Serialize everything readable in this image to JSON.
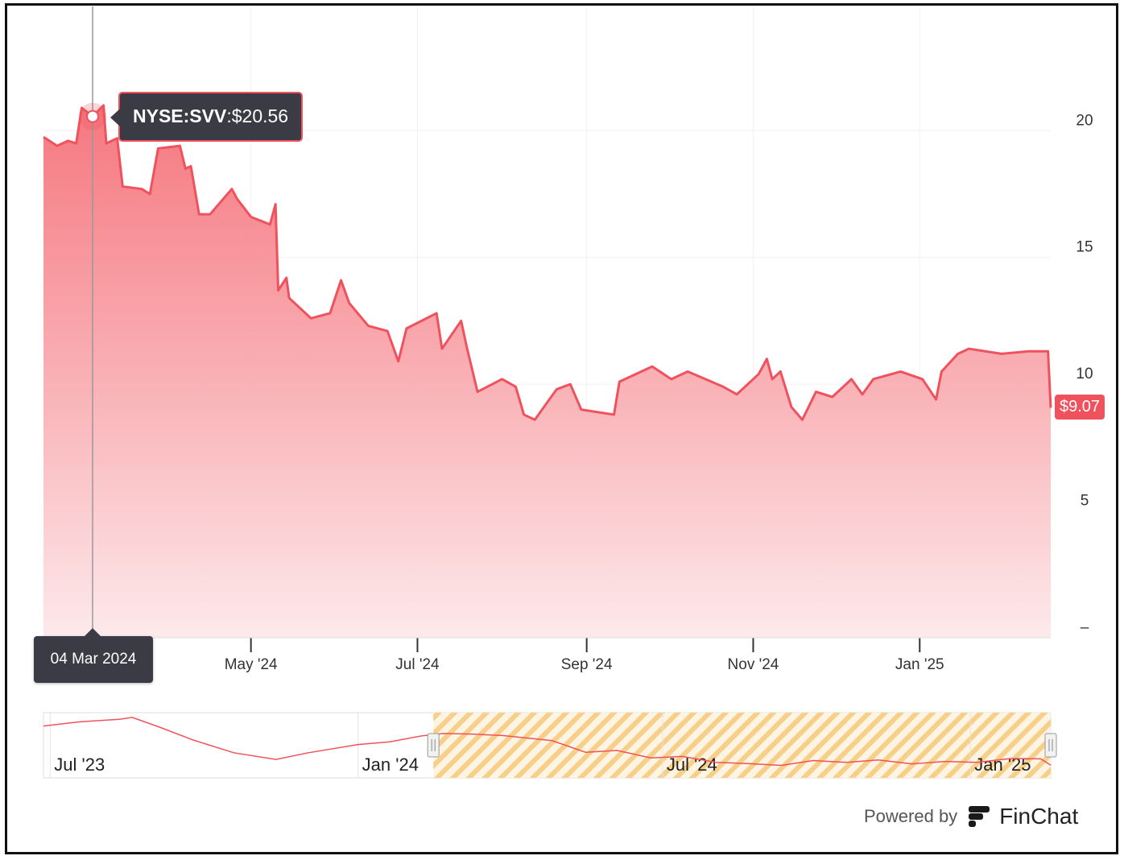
{
  "chart_data": {
    "type": "area",
    "series": [
      {
        "name": "NYSE:SVV",
        "color": "#f0525d",
        "x": [
          "2024-02-15",
          "2024-02-20",
          "2024-02-24",
          "2024-02-27",
          "2024-02-29",
          "2024-03-04",
          "2024-03-08",
          "2024-03-09",
          "2024-03-13",
          "2024-03-15",
          "2024-03-22",
          "2024-03-25",
          "2024-03-28",
          "2024-04-05",
          "2024-04-07",
          "2024-04-09",
          "2024-04-12",
          "2024-04-16",
          "2024-04-24",
          "2024-04-26",
          "2024-05-01",
          "2024-05-08",
          "2024-05-10",
          "2024-05-11",
          "2024-05-14",
          "2024-05-15",
          "2024-05-23",
          "2024-05-30",
          "2024-06-03",
          "2024-06-06",
          "2024-06-13",
          "2024-06-20",
          "2024-06-24",
          "2024-06-27",
          "2024-07-08",
          "2024-07-10",
          "2024-07-17",
          "2024-07-19",
          "2024-07-23",
          "2024-08-01",
          "2024-08-06",
          "2024-08-09",
          "2024-08-13",
          "2024-08-21",
          "2024-08-26",
          "2024-08-30",
          "2024-09-11",
          "2024-09-13",
          "2024-09-25",
          "2024-10-02",
          "2024-10-08",
          "2024-10-21",
          "2024-10-26",
          "2024-11-03",
          "2024-11-06",
          "2024-11-08",
          "2024-11-11",
          "2024-11-15",
          "2024-11-19",
          "2024-11-24",
          "2024-11-30",
          "2024-12-07",
          "2024-12-11",
          "2024-12-15",
          "2024-12-25",
          "2025-01-02",
          "2025-01-07",
          "2025-01-09",
          "2025-01-15",
          "2025-01-19",
          "2025-01-31",
          "2025-02-10",
          "2025-02-17",
          "2025-02-18"
        ],
        "values": [
          19.75,
          19.4,
          19.6,
          19.5,
          20.9,
          20.56,
          21.0,
          19.5,
          19.7,
          17.8,
          17.7,
          17.5,
          19.3,
          19.4,
          18.5,
          18.6,
          16.7,
          16.7,
          17.7,
          17.3,
          16.6,
          16.3,
          17.1,
          13.7,
          14.2,
          13.4,
          12.6,
          12.8,
          14.1,
          13.2,
          12.3,
          12.1,
          10.9,
          12.2,
          12.8,
          11.4,
          12.5,
          11.5,
          9.7,
          10.2,
          9.9,
          8.8,
          8.6,
          9.8,
          10.0,
          9.0,
          8.8,
          10.1,
          10.7,
          10.2,
          10.5,
          9.9,
          9.6,
          10.4,
          11.0,
          10.2,
          10.5,
          9.1,
          8.6,
          9.7,
          9.5,
          10.2,
          9.6,
          10.2,
          10.5,
          10.2,
          9.4,
          10.5,
          11.2,
          11.4,
          11.2,
          11.3,
          11.3,
          9.07
        ],
        "value_labels": [
          null,
          null,
          null,
          null,
          null,
          "$20.56",
          null,
          null,
          null,
          null,
          null,
          null,
          null,
          null,
          null,
          null,
          null,
          null,
          null,
          null,
          null,
          null,
          null,
          null,
          null,
          null,
          null,
          null,
          null,
          null,
          null,
          null,
          null,
          null,
          null,
          null,
          null,
          null,
          null,
          null,
          null,
          null,
          null,
          null,
          null,
          null,
          null,
          null,
          null,
          null,
          null,
          null,
          null,
          null,
          null,
          null,
          null,
          null,
          null,
          null,
          null,
          null,
          null,
          null,
          null,
          null,
          null,
          null,
          null,
          null,
          null,
          null,
          null,
          "$9.07"
        ]
      }
    ],
    "tooltip_date": "04 Mar 2024",
    "xlim": [
      "2024-02-15",
      "2025-02-18"
    ],
    "xticks": [
      {
        "value": "2024-05-01",
        "label": "May '24"
      },
      {
        "value": "2024-07-01",
        "label": "Jul '24"
      },
      {
        "value": "2024-09-01",
        "label": "Sep '24"
      },
      {
        "value": "2024-11-01",
        "label": "Nov '24"
      },
      {
        "value": "2025-01-01",
        "label": "Jan '25"
      }
    ],
    "ylim": [
      0,
      24.9
    ],
    "yticks": [
      {
        "value": 0,
        "label": "–"
      },
      5,
      10,
      15,
      20
    ],
    "grid": true,
    "navigator": {
      "x": [
        "2023-06-27",
        "2023-07-18",
        "2023-08-12",
        "2023-08-19",
        "2023-09-05",
        "2023-09-25",
        "2023-10-19",
        "2023-11-13",
        "2023-12-02",
        "2024-01-01",
        "2024-01-20",
        "2024-02-08",
        "2024-02-21",
        "2024-03-09",
        "2024-03-28",
        "2024-04-26",
        "2024-05-16",
        "2024-06-04",
        "2024-06-24",
        "2024-07-13",
        "2024-08-02",
        "2024-08-21",
        "2024-09-10",
        "2024-09-29",
        "2024-10-19",
        "2024-11-07",
        "2024-11-27",
        "2024-12-17",
        "2025-01-05",
        "2025-01-25",
        "2025-02-12",
        "2025-02-18"
      ],
      "values": [
        22.2,
        23.6,
        24.5,
        25.1,
        21.7,
        17.4,
        13.2,
        11.0,
        13.2,
        16.0,
        16.9,
        18.9,
        19.7,
        19.5,
        19.0,
        17.3,
        13.4,
        14.0,
        11.5,
        12.0,
        10.0,
        9.6,
        9.0,
        10.6,
        10.0,
        10.8,
        9.5,
        10.3,
        10.0,
        11.3,
        11.2,
        9.07
      ],
      "xlim": [
        "2023-06-27",
        "2025-02-18"
      ],
      "ylim": [
        4.8,
        26.7
      ],
      "xticks": [
        {
          "value": "2023-07-01",
          "label": "Jul '23"
        },
        {
          "value": "2024-01-01",
          "label": "Jan '24"
        },
        {
          "value": "2024-07-01",
          "label": "Jul '24"
        },
        {
          "value": "2025-01-01",
          "label": "Jan '25"
        }
      ]
    }
  },
  "footer": {
    "powered_by": "Powered by",
    "brand": "FinChat"
  }
}
